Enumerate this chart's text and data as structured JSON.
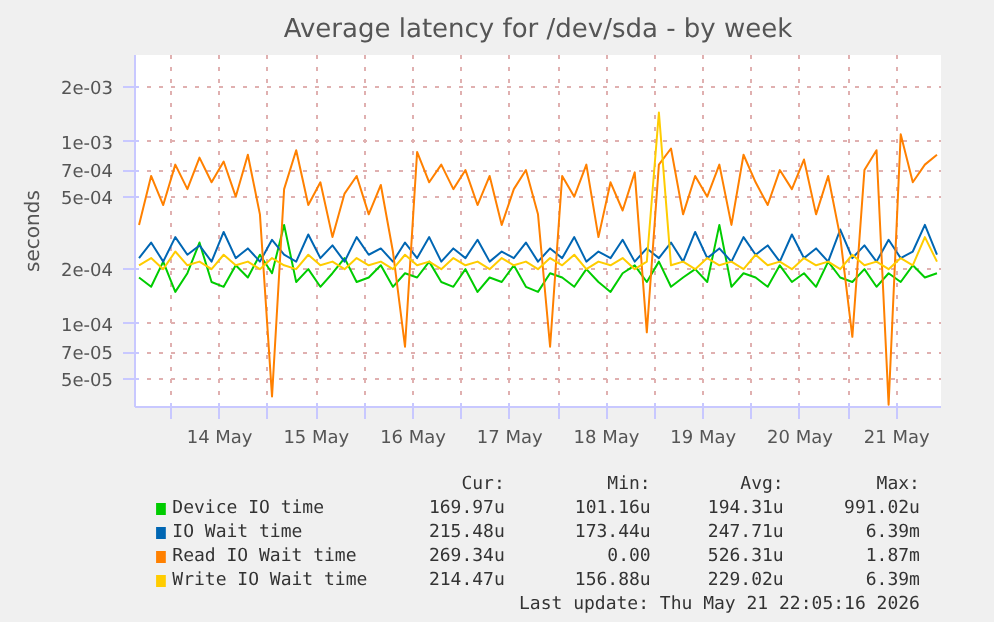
{
  "chart_data": {
    "type": "line",
    "title": "Average latency for /dev/sda - by week",
    "ylabel": "seconds",
    "log": true,
    "grid": true,
    "legend": "bottom",
    "xlim": [
      "2026-05-13T15:00",
      "2026-05-21T23:00"
    ],
    "ylim": [
      3.5e-05,
      0.003
    ],
    "xticks": [
      {
        "value": "2026-05-14T00:00",
        "label": null
      },
      {
        "value": "2026-05-14T12:00",
        "label": "14 May"
      },
      {
        "value": "2026-05-15T00:00",
        "label": null
      },
      {
        "value": "2026-05-15T12:00",
        "label": "15 May"
      },
      {
        "value": "2026-05-16T00:00",
        "label": null
      },
      {
        "value": "2026-05-16T12:00",
        "label": "16 May"
      },
      {
        "value": "2026-05-17T00:00",
        "label": null
      },
      {
        "value": "2026-05-17T12:00",
        "label": "17 May"
      },
      {
        "value": "2026-05-18T00:00",
        "label": null
      },
      {
        "value": "2026-05-18T12:00",
        "label": "18 May"
      },
      {
        "value": "2026-05-19T00:00",
        "label": null
      },
      {
        "value": "2026-05-19T12:00",
        "label": "19 May"
      },
      {
        "value": "2026-05-20T00:00",
        "label": null
      },
      {
        "value": "2026-05-20T12:00",
        "label": "20 May"
      },
      {
        "value": "2026-05-21T00:00",
        "label": null
      },
      {
        "value": "2026-05-21T12:00",
        "label": "21 May"
      }
    ],
    "yticks": [
      {
        "value": 5e-05,
        "label": "5e-05"
      },
      {
        "value": 7e-05,
        "label": "7e-05"
      },
      {
        "value": 0.0001,
        "label": "1e-04"
      },
      {
        "value": 0.0002,
        "label": "2e-04"
      },
      {
        "value": 0.0005,
        "label": "5e-04"
      },
      {
        "value": 0.0007,
        "label": "7e-04"
      },
      {
        "value": 0.001,
        "label": "1e-03"
      },
      {
        "value": 0.002,
        "label": "2e-03"
      }
    ],
    "x": [
      "2026-05-13T16:00",
      "2026-05-13T19:00",
      "2026-05-13T22:00",
      "2026-05-14T01:00",
      "2026-05-14T04:00",
      "2026-05-14T07:00",
      "2026-05-14T10:00",
      "2026-05-14T13:00",
      "2026-05-14T16:00",
      "2026-05-14T19:00",
      "2026-05-14T22:00",
      "2026-05-15T01:00",
      "2026-05-15T04:00",
      "2026-05-15T07:00",
      "2026-05-15T10:00",
      "2026-05-15T13:00",
      "2026-05-15T16:00",
      "2026-05-15T19:00",
      "2026-05-15T22:00",
      "2026-05-16T01:00",
      "2026-05-16T04:00",
      "2026-05-16T07:00",
      "2026-05-16T10:00",
      "2026-05-16T13:00",
      "2026-05-16T16:00",
      "2026-05-16T19:00",
      "2026-05-16T22:00",
      "2026-05-17T01:00",
      "2026-05-17T04:00",
      "2026-05-17T07:00",
      "2026-05-17T10:00",
      "2026-05-17T13:00",
      "2026-05-17T16:00",
      "2026-05-17T19:00",
      "2026-05-17T22:00",
      "2026-05-18T01:00",
      "2026-05-18T04:00",
      "2026-05-18T07:00",
      "2026-05-18T10:00",
      "2026-05-18T13:00",
      "2026-05-18T16:00",
      "2026-05-18T19:00",
      "2026-05-18T22:00",
      "2026-05-19T01:00",
      "2026-05-19T04:00",
      "2026-05-19T07:00",
      "2026-05-19T10:00",
      "2026-05-19T13:00",
      "2026-05-19T16:00",
      "2026-05-19T19:00",
      "2026-05-19T22:00",
      "2026-05-20T01:00",
      "2026-05-20T04:00",
      "2026-05-20T07:00",
      "2026-05-20T10:00",
      "2026-05-20T13:00",
      "2026-05-20T16:00",
      "2026-05-20T19:00",
      "2026-05-20T22:00",
      "2026-05-21T01:00",
      "2026-05-21T04:00",
      "2026-05-21T07:00",
      "2026-05-21T10:00",
      "2026-05-21T13:00",
      "2026-05-21T16:00",
      "2026-05-21T19:00",
      "2026-05-21T22:00"
    ],
    "series": [
      {
        "name": "Device IO time",
        "color": "#00cc00",
        "values": [
          0.00018,
          0.00016,
          0.00022,
          0.00015,
          0.00019,
          0.00028,
          0.00017,
          0.00016,
          0.00021,
          0.00018,
          0.00024,
          0.00019,
          0.00035,
          0.00017,
          0.0002,
          0.00016,
          0.00019,
          0.00023,
          0.00017,
          0.00018,
          0.00021,
          0.00016,
          0.00019,
          0.00018,
          0.00022,
          0.00017,
          0.00016,
          0.0002,
          0.00015,
          0.00018,
          0.00017,
          0.00021,
          0.00016,
          0.00015,
          0.00019,
          0.00018,
          0.00016,
          0.0002,
          0.00017,
          0.00015,
          0.00019,
          0.00021,
          0.00017,
          0.00022,
          0.00016,
          0.00018,
          0.0002,
          0.00017,
          0.00035,
          0.00016,
          0.00019,
          0.00018,
          0.00016,
          0.00021,
          0.00017,
          0.00019,
          0.00016,
          0.00022,
          0.00018,
          0.00017,
          0.0002,
          0.00016,
          0.00019,
          0.00017,
          0.00021,
          0.00018,
          0.00019
        ]
      },
      {
        "name": "IO Wait time",
        "color": "#0066b3",
        "values": [
          0.00023,
          0.00028,
          0.00022,
          0.0003,
          0.00024,
          0.00027,
          0.00022,
          0.00032,
          0.00023,
          0.00026,
          0.00022,
          0.00029,
          0.00024,
          0.00022,
          0.00031,
          0.00023,
          0.00027,
          0.00022,
          0.0003,
          0.00024,
          0.00026,
          0.00022,
          0.00028,
          0.00023,
          0.0003,
          0.00022,
          0.00026,
          0.00023,
          0.00029,
          0.00022,
          0.00025,
          0.00023,
          0.00028,
          0.00022,
          0.00026,
          0.00023,
          0.0003,
          0.00022,
          0.00025,
          0.00023,
          0.00029,
          0.00022,
          0.00026,
          0.00023,
          0.00028,
          0.00022,
          0.00032,
          0.00023,
          0.00026,
          0.00022,
          0.0003,
          0.00024,
          0.00027,
          0.00022,
          0.00031,
          0.00023,
          0.00026,
          0.00022,
          0.00033,
          0.00023,
          0.00027,
          0.00022,
          0.00029,
          0.00023,
          0.00025,
          0.00035,
          0.00024
        ]
      },
      {
        "name": "Read IO Wait time",
        "color": "#ff8000",
        "values": [
          0.00035,
          0.00065,
          0.00045,
          0.00075,
          0.00055,
          0.00082,
          0.0006,
          0.00078,
          0.0005,
          0.00085,
          0.0004,
          4e-05,
          0.00055,
          0.0009,
          0.00045,
          0.0006,
          0.0003,
          0.00052,
          0.00065,
          0.0004,
          0.00058,
          0.00025,
          7.5e-05,
          0.00088,
          0.0006,
          0.00075,
          0.00055,
          0.0007,
          0.00045,
          0.00065,
          0.00035,
          0.00055,
          0.0007,
          0.0004,
          7.5e-05,
          0.00065,
          0.0005,
          0.00075,
          0.0003,
          0.0006,
          0.00042,
          0.00068,
          9e-05,
          0.00075,
          0.00092,
          0.0004,
          0.00065,
          0.0005,
          0.00075,
          0.00035,
          0.00085,
          0.0006,
          0.00045,
          0.0007,
          0.00055,
          0.0008,
          0.0004,
          0.00065,
          0.0003,
          8.5e-05,
          0.0007,
          0.0009,
          3.6e-05,
          0.0011,
          0.0006,
          0.00075,
          0.00085
        ]
      },
      {
        "name": "Write IO Wait time",
        "color": "#ffcc00",
        "values": [
          0.00021,
          0.00023,
          0.0002,
          0.00025,
          0.00021,
          0.00022,
          0.0002,
          0.00024,
          0.00021,
          0.00022,
          0.0002,
          0.00023,
          0.00021,
          0.0002,
          0.00024,
          0.00021,
          0.00022,
          0.0002,
          0.00023,
          0.00021,
          0.00022,
          0.0002,
          0.00024,
          0.00021,
          0.00022,
          0.0002,
          0.00023,
          0.00021,
          0.00022,
          0.0002,
          0.00023,
          0.00021,
          0.00022,
          0.0002,
          0.00023,
          0.00021,
          0.00024,
          0.0002,
          0.00022,
          0.00021,
          0.00023,
          0.0002,
          0.00022,
          0.00145,
          0.00021,
          0.00022,
          0.0002,
          0.00023,
          0.00021,
          0.00022,
          0.0002,
          0.00024,
          0.00021,
          0.00022,
          0.0002,
          0.00023,
          0.00021,
          0.00022,
          0.0002,
          0.00024,
          0.00021,
          0.00022,
          0.0002,
          0.00023,
          0.00021,
          0.0003,
          0.00022
        ]
      }
    ],
    "annotations": [
      "Cur:",
      "Min:",
      "Avg:",
      "Max:",
      "169.97u",
      "101.16u",
      "194.31u",
      "991.02u",
      "215.48u",
      "173.44u",
      "247.71u",
      "6.39m",
      "269.34u",
      "0.00",
      "526.31u",
      "1.87m",
      "214.47u",
      "156.88u",
      "229.02u",
      "6.39m",
      "Last update: Thu May 21 22:05:16 2026"
    ]
  }
}
